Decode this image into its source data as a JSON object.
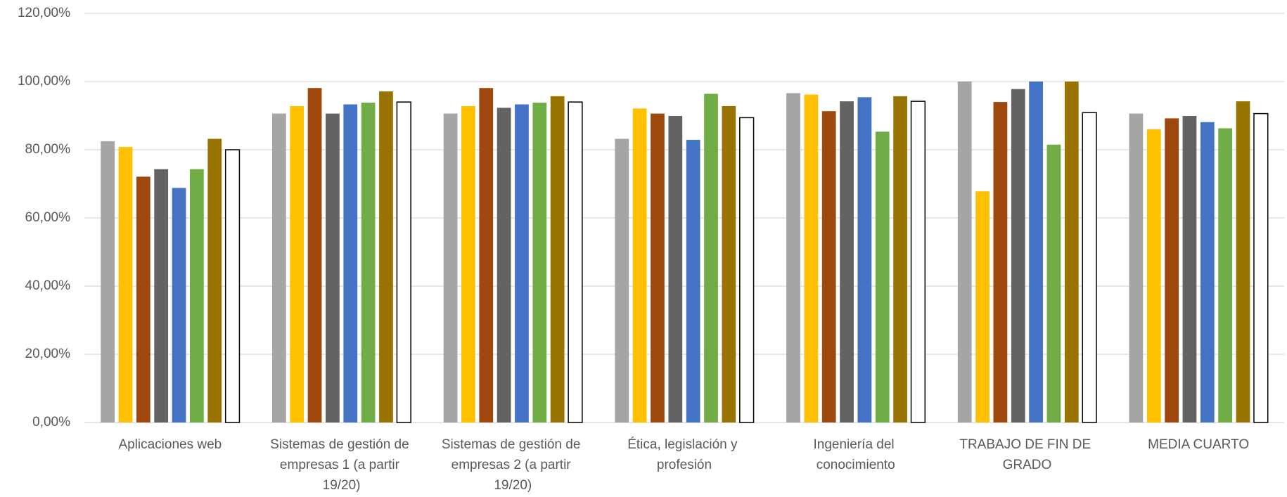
{
  "chart_data": {
    "type": "bar",
    "categories": [
      "Aplicaciones web",
      "Sistemas de gestión de empresas 1 (a partir 19/20)",
      "Sistemas de gestión de empresas 2 (a partir 19/20)",
      "Ética, legislación y profesión",
      "Ingeniería del conocimiento",
      "TRABAJO DE FIN DE GRADO",
      "MEDIA CUARTO"
    ],
    "series": [
      {
        "color": "#a5a5a5",
        "values": [
          82.5,
          90.6,
          90.6,
          83.2,
          96.6,
          100,
          90.6
        ]
      },
      {
        "color": "#ffc000",
        "values": [
          80.8,
          92.8,
          92.8,
          92.1,
          96.2,
          67.8,
          86
        ]
      },
      {
        "color": "#9e480e",
        "values": [
          72.1,
          98.1,
          98.1,
          90.6,
          91.3,
          94,
          89.2
        ]
      },
      {
        "color": "#636363",
        "values": [
          74.3,
          90.6,
          92.3,
          89.9,
          94.2,
          97.8,
          89.9
        ]
      },
      {
        "color": "#4472c4",
        "values": [
          68.8,
          93.3,
          93.3,
          82.9,
          95.4,
          100,
          88.1
        ]
      },
      {
        "color": "#70ad47",
        "values": [
          74.3,
          93.8,
          93.8,
          96.4,
          85.3,
          81.5,
          86.3
        ]
      },
      {
        "color": "#997300",
        "values": [
          83.2,
          97.1,
          95.7,
          92.8,
          95.7,
          100,
          94.2
        ]
      },
      {
        "color": "#ffffff",
        "values": [
          80,
          94,
          94,
          89.4,
          94.2,
          90.9,
          90.6
        ]
      }
    ],
    "ylim": [
      0,
      120
    ],
    "yticks": [
      {
        "value": 0,
        "label": "0,00%"
      },
      {
        "value": 20,
        "label": "20,00%"
      },
      {
        "value": 40,
        "label": "40,00%"
      },
      {
        "value": 60,
        "label": "60,00%"
      },
      {
        "value": 80,
        "label": "80,00%"
      },
      {
        "value": 100,
        "label": "100,00%"
      },
      {
        "value": 120,
        "label": "120,00%"
      }
    ],
    "grid": true
  }
}
